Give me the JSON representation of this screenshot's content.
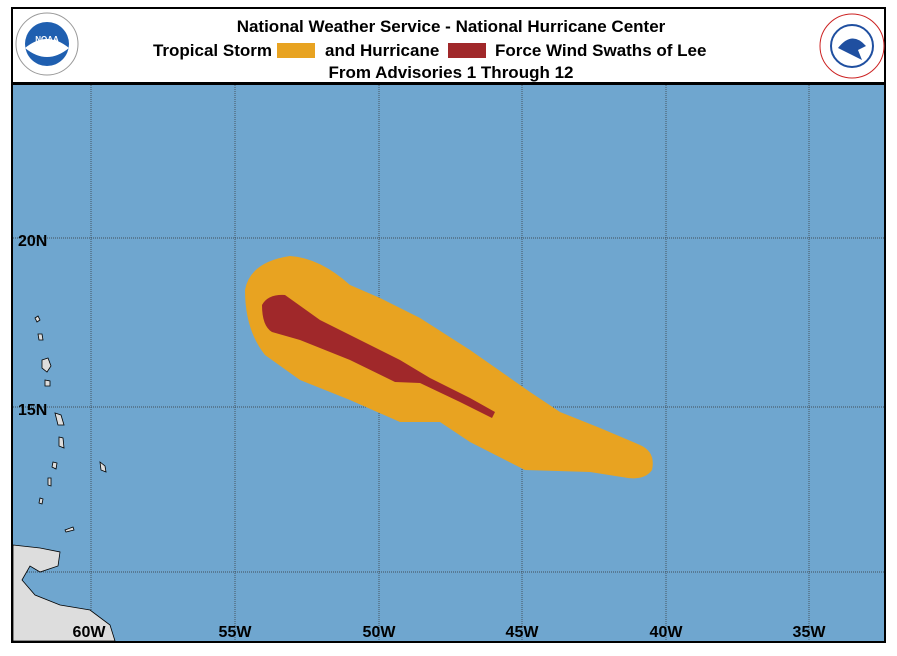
{
  "header": {
    "title": "National Weather Service - National Hurricane Center",
    "legend": {
      "tropical_storm": "Tropical Storm",
      "hurricane": "and Hurricane",
      "suffix": "Force Wind Swaths of Lee"
    },
    "subtitle": "From Advisories 1 Through 12",
    "noaa_logo": "NOAA"
  },
  "map": {
    "longitude_labels": [
      "60W",
      "55W",
      "50W",
      "45W",
      "40W",
      "35W"
    ],
    "latitude_labels": [
      "20N",
      "15N"
    ]
  }
}
